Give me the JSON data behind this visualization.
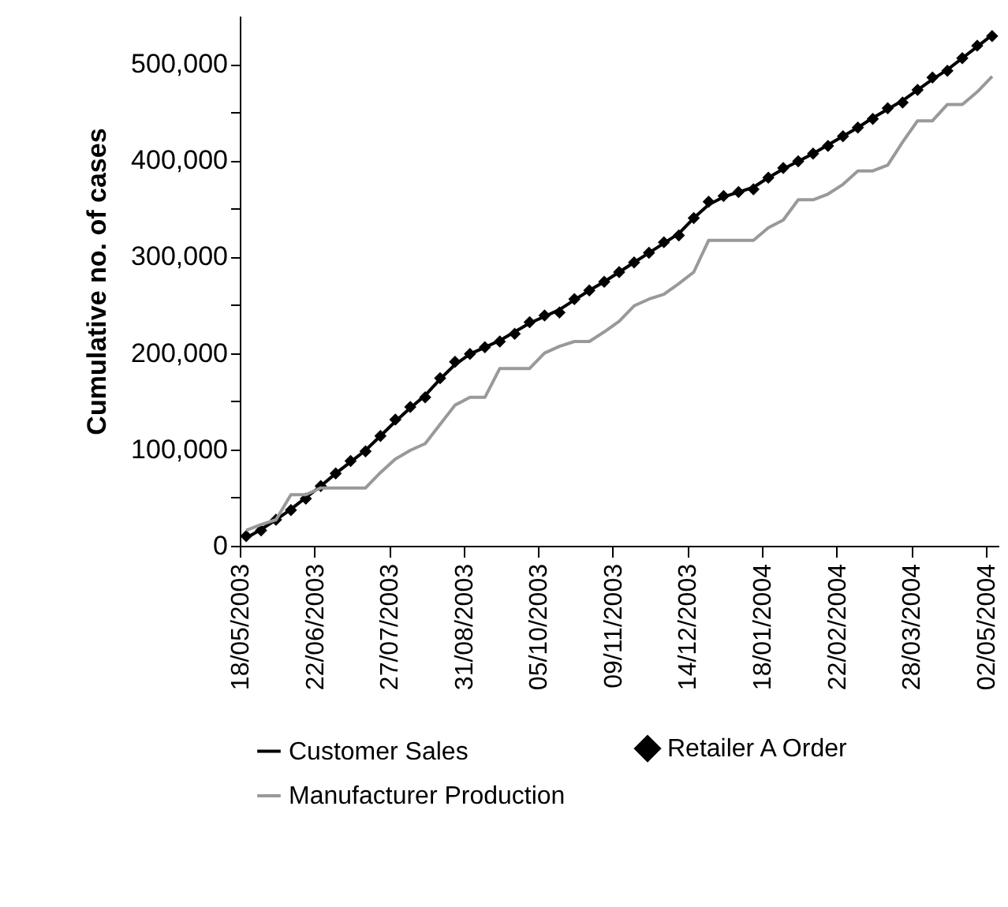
{
  "chart_data": {
    "type": "line",
    "ylabel": "Cumulative no. of cases",
    "x": [
      "2003-05-21",
      "2003-05-28",
      "2003-06-04",
      "2003-06-11",
      "2003-06-18",
      "2003-06-25",
      "2003-07-02",
      "2003-07-09",
      "2003-07-16",
      "2003-07-23",
      "2003-07-30",
      "2003-08-06",
      "2003-08-13",
      "2003-08-20",
      "2003-08-27",
      "2003-09-03",
      "2003-09-10",
      "2003-09-17",
      "2003-09-24",
      "2003-10-01",
      "2003-10-08",
      "2003-10-15",
      "2003-10-22",
      "2003-10-29",
      "2003-11-05",
      "2003-11-12",
      "2003-11-19",
      "2003-11-26",
      "2003-12-03",
      "2003-12-10",
      "2003-12-17",
      "2003-12-24",
      "2003-12-31",
      "2004-01-07",
      "2004-01-14",
      "2004-01-21",
      "2004-01-28",
      "2004-02-04",
      "2004-02-11",
      "2004-02-18",
      "2004-02-25",
      "2004-03-03",
      "2004-03-10",
      "2004-03-17",
      "2004-03-24",
      "2004-03-31",
      "2004-04-07",
      "2004-04-14",
      "2004-04-21",
      "2004-04-28",
      "2004-05-05"
    ],
    "series": [
      {
        "name": "Customer Sales",
        "type": "line",
        "color": "#000000",
        "values": [
          8000,
          17000,
          27000,
          38000,
          50000,
          62000,
          75000,
          87000,
          99000,
          114000,
          129000,
          143000,
          156000,
          173000,
          188000,
          199000,
          206000,
          213000,
          222000,
          231000,
          238000,
          245000,
          255000,
          265000,
          274000,
          284000,
          294000,
          304000,
          314000,
          324000,
          340000,
          354000,
          362000,
          367000,
          372000,
          382000,
          391000,
          399000,
          407000,
          416000,
          425000,
          434000,
          444000,
          453000,
          462000,
          473000,
          484000,
          494000,
          506000,
          518000,
          530000
        ]
      },
      {
        "name": "Retailer A Order",
        "type": "scatter",
        "marker": "diamond",
        "color": "#000000",
        "values": [
          10000,
          16000,
          27000,
          37000,
          49000,
          62000,
          75000,
          88000,
          98000,
          114000,
          131000,
          144000,
          154000,
          174000,
          191000,
          199000,
          206000,
          212000,
          220000,
          232000,
          239000,
          242000,
          256000,
          265000,
          274000,
          284000,
          294000,
          304000,
          315000,
          322000,
          340000,
          357000,
          363000,
          367000,
          370000,
          382000,
          392000,
          399000,
          407000,
          415000,
          425000,
          434000,
          443000,
          454000,
          460000,
          473000,
          486000,
          493000,
          506000,
          519000,
          529000
        ]
      },
      {
        "name": "Manufacturer Production",
        "type": "line",
        "color": "#999999",
        "values": [
          16000,
          22000,
          27000,
          53000,
          53000,
          60000,
          60000,
          60000,
          60000,
          76000,
          90000,
          99000,
          106000,
          126000,
          146000,
          154000,
          154000,
          184000,
          184000,
          184000,
          200000,
          207000,
          212000,
          212000,
          222000,
          233000,
          249000,
          256000,
          261000,
          272000,
          284000,
          317000,
          317000,
          317000,
          317000,
          330000,
          338000,
          359000,
          359000,
          365000,
          375000,
          389000,
          389000,
          395000,
          419000,
          441000,
          441000,
          458000,
          458000,
          471000,
          487000
        ]
      }
    ],
    "xlim": [
      "2003-05-18",
      "2004-05-08"
    ],
    "xticks": [
      {
        "value": "2003-05-18",
        "label": "18/05/2003"
      },
      {
        "value": "2003-06-22",
        "label": "22/06/2003"
      },
      {
        "value": "2003-07-27",
        "label": "27/07/2003"
      },
      {
        "value": "2003-08-31",
        "label": "31/08/2003"
      },
      {
        "value": "2003-10-05",
        "label": "05/10/2003"
      },
      {
        "value": "2003-11-09",
        "label": "09/11/2003"
      },
      {
        "value": "2003-12-14",
        "label": "14/12/2003"
      },
      {
        "value": "2004-01-18",
        "label": "18/01/2004"
      },
      {
        "value": "2004-02-22",
        "label": "22/02/2004"
      },
      {
        "value": "2004-03-28",
        "label": "28/03/2004"
      },
      {
        "value": "2004-05-02",
        "label": "02/05/2004"
      }
    ],
    "ylim": [
      0,
      550000
    ],
    "yticks": [
      {
        "value": 0,
        "label": "0"
      },
      {
        "value": 50000,
        "label": null
      },
      {
        "value": 100000,
        "label": "100,000"
      },
      {
        "value": 150000,
        "label": null
      },
      {
        "value": 200000,
        "label": "200,000"
      },
      {
        "value": 250000,
        "label": null
      },
      {
        "value": 300000,
        "label": "300,000"
      },
      {
        "value": 350000,
        "label": null
      },
      {
        "value": 400000,
        "label": "400,000"
      },
      {
        "value": 450000,
        "label": null
      },
      {
        "value": 500000,
        "label": "500,000"
      }
    ],
    "grid": false,
    "legend": "bottom"
  }
}
